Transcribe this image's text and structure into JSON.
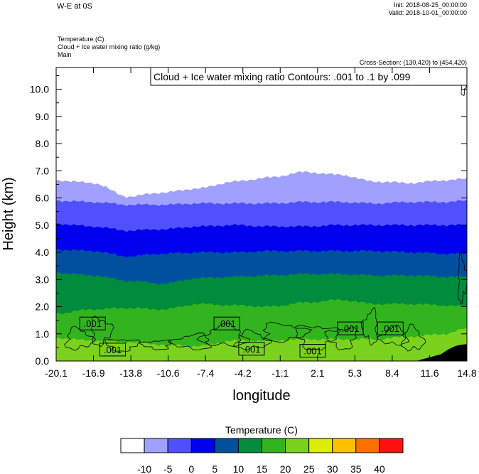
{
  "header": {
    "title": "W-E at 0S",
    "init": "Init: 2018-08-25_00:00:00",
    "valid": "Valid: 2018-10-01_00:00:00",
    "field1": "Temperature   (C)",
    "field2": "Cloud + Ice water mixing ratio   (g/kg)",
    "field3": "Main",
    "cross_section": "Cross-Section: (130,420) to (454,420)",
    "contour_info": "Cloud + Ice water mixing ratio Contours: .001 to .1 by .099"
  },
  "chart_data": {
    "type": "area",
    "xlabel": "longitude",
    "ylabel": "Height (km)",
    "xlim": [
      -20.1,
      14.8
    ],
    "ylim": [
      0.0,
      10.8
    ],
    "x_ticks": [
      "-20.1",
      "-16.9",
      "-13.8",
      "-10.6",
      "-7.4",
      "-4.2",
      "-1.1",
      "2.1",
      "5.3",
      "8.4",
      "11.6",
      "14.8"
    ],
    "y_ticks": [
      "0.0",
      "1.0",
      "2.0",
      "3.0",
      "4.0",
      "5.0",
      "6.0",
      "7.0",
      "8.0",
      "9.0",
      "10.0"
    ],
    "x": [
      -20.1,
      -17.0,
      -14.0,
      -11.0,
      -8.0,
      -5.0,
      -2.0,
      1.0,
      4.0,
      7.0,
      10.0,
      13.0,
      14.8
    ],
    "isotherms": [
      {
        "level": -5,
        "heights": [
          6.65,
          6.55,
          6.05,
          6.2,
          6.35,
          6.6,
          6.75,
          6.95,
          6.85,
          6.6,
          6.55,
          6.65,
          6.7
        ]
      },
      {
        "level": 0,
        "heights": [
          5.9,
          5.85,
          5.75,
          5.75,
          5.8,
          5.8,
          5.8,
          5.85,
          5.85,
          5.8,
          5.85,
          5.85,
          5.9
        ]
      },
      {
        "level": 5,
        "heights": [
          5.05,
          4.95,
          4.8,
          4.85,
          4.95,
          5.0,
          4.95,
          4.95,
          5.0,
          5.0,
          5.0,
          5.0,
          5.0
        ]
      },
      {
        "level": 10,
        "heights": [
          4.1,
          4.05,
          3.85,
          3.95,
          4.0,
          4.0,
          4.05,
          4.05,
          4.05,
          4.05,
          4.0,
          3.95,
          3.95
        ]
      },
      {
        "level": 15,
        "heights": [
          3.25,
          3.15,
          2.95,
          2.85,
          3.05,
          3.1,
          3.15,
          3.2,
          3.2,
          3.15,
          3.15,
          3.1,
          3.1
        ]
      },
      {
        "level": 20,
        "heights": [
          1.75,
          1.9,
          1.95,
          1.9,
          2.1,
          2.05,
          2.0,
          2.15,
          2.25,
          2.1,
          2.1,
          2.05,
          2.0
        ]
      },
      {
        "level": 25,
        "heights": [
          0.85,
          0.75,
          0.7,
          0.6,
          0.55,
          0.75,
          0.75,
          0.8,
          0.8,
          0.8,
          0.9,
          1.0,
          1.2
        ]
      }
    ],
    "contour_labels": [
      {
        "x": -17.0,
        "y": 1.38,
        "text": ".001"
      },
      {
        "x": -15.3,
        "y": 0.42,
        "text": ".001"
      },
      {
        "x": -5.6,
        "y": 1.38,
        "text": ".001"
      },
      {
        "x": -3.5,
        "y": 0.45,
        "text": ".001"
      },
      {
        "x": 1.7,
        "y": 0.38,
        "text": ".001"
      },
      {
        "x": 4.9,
        "y": 1.2,
        "text": ".001"
      },
      {
        "x": 8.3,
        "y": 1.2,
        "text": ".001"
      }
    ],
    "colorbar": {
      "title": "Temperature  (C)",
      "labels": [
        "-10",
        "-5",
        "0",
        "5",
        "10",
        "15",
        "20",
        "25",
        "30",
        "35",
        "40"
      ],
      "colors": [
        "#ffffff",
        "#a0a0ff",
        "#5050ff",
        "#0000ee",
        "#0050a0",
        "#008c3c",
        "#32b41e",
        "#7ad21e",
        "#dced00",
        "#ffc000",
        "#ff7000",
        "#ff1010"
      ]
    }
  }
}
